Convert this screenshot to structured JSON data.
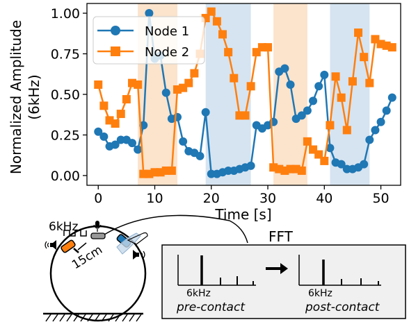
{
  "chart_data": {
    "type": "line",
    "xlabel": "Time [s]",
    "ylabel": "Normalized Amplitude",
    "ylabel_sub": "(6kHz)",
    "xlim": [
      -2,
      53.5
    ],
    "ylim": [
      -0.06,
      1.06
    ],
    "xticks": [
      0,
      10,
      20,
      30,
      40,
      50
    ],
    "yticks": [
      0.0,
      0.25,
      0.5,
      0.75,
      1.0
    ],
    "ytick_labels": [
      "0.00",
      "0.25",
      "0.50",
      "0.75",
      "1.00"
    ],
    "legend_position": "top-left",
    "shaded_regions": [
      {
        "start": 7,
        "end": 14,
        "color": "#fbe3cc"
      },
      {
        "start": 19,
        "end": 27,
        "color": "#d6e4f1"
      },
      {
        "start": 31,
        "end": 37,
        "color": "#fbe3cc"
      },
      {
        "start": 41,
        "end": 48,
        "color": "#d6e4f1"
      }
    ],
    "series": [
      {
        "name": "Node 1",
        "color": "#1f77b4",
        "marker": "circle",
        "x": [
          0,
          1,
          2,
          3,
          4,
          5,
          6,
          7,
          8,
          9,
          10,
          11,
          12,
          13,
          14,
          15,
          16,
          17,
          18,
          19,
          20,
          21,
          22,
          23,
          24,
          25,
          26,
          27,
          28,
          29,
          30,
          31,
          32,
          33,
          34,
          35,
          36,
          37,
          38,
          39,
          40,
          41,
          42,
          43,
          44,
          45,
          46,
          47,
          48,
          49,
          50,
          51,
          52
        ],
        "y": [
          0.27,
          0.24,
          0.18,
          0.19,
          0.22,
          0.22,
          0.2,
          0.16,
          0.31,
          1.0,
          0.72,
          0.74,
          0.51,
          0.35,
          0.36,
          0.21,
          0.15,
          0.14,
          0.12,
          0.39,
          0.01,
          0.01,
          0.02,
          0.03,
          0.03,
          0.04,
          0.05,
          0.06,
          0.31,
          0.29,
          0.31,
          0.33,
          0.64,
          0.66,
          0.56,
          0.35,
          0.37,
          0.4,
          0.46,
          0.55,
          0.62,
          0.17,
          0.08,
          0.07,
          0.04,
          0.04,
          0.05,
          0.07,
          0.22,
          0.28,
          0.33,
          0.4,
          0.48
        ]
      },
      {
        "name": "Node 2",
        "color": "#ff7f0e",
        "marker": "square",
        "x": [
          0,
          1,
          2,
          3,
          4,
          5,
          6,
          7,
          8,
          9,
          10,
          11,
          12,
          13,
          14,
          15,
          16,
          17,
          18,
          19,
          20,
          21,
          22,
          23,
          24,
          25,
          26,
          27,
          28,
          29,
          30,
          31,
          32,
          33,
          34,
          35,
          36,
          37,
          38,
          39,
          40,
          41,
          42,
          43,
          44,
          45,
          46,
          47,
          48,
          49,
          50,
          51,
          52
        ],
        "y": [
          0.56,
          0.43,
          0.34,
          0.32,
          0.38,
          0.47,
          0.57,
          0.56,
          0.01,
          0.01,
          0.02,
          0.02,
          0.03,
          0.03,
          0.53,
          0.54,
          0.57,
          0.63,
          0.75,
          0.97,
          1.01,
          0.95,
          0.87,
          0.76,
          0.6,
          0.37,
          0.37,
          0.55,
          0.76,
          0.79,
          0.79,
          0.05,
          0.04,
          0.03,
          0.04,
          0.04,
          0.03,
          0.21,
          0.16,
          0.13,
          0.09,
          0.31,
          0.61,
          0.48,
          0.28,
          0.58,
          0.88,
          0.73,
          0.57,
          0.84,
          0.81,
          0.8,
          0.79
        ]
      }
    ]
  },
  "diagram": {
    "freq_label": "6kHz",
    "distance_label": "15cm",
    "fft_title": "FFT",
    "pre_freq_label": "6kHz",
    "post_freq_label": "6kHz",
    "pre_caption": "pre-contact",
    "post_caption": "post-contact"
  },
  "colors": {
    "blue": "#1f77b4",
    "orange": "#ff7f0e",
    "panel_bg": "#f0f0f0"
  }
}
